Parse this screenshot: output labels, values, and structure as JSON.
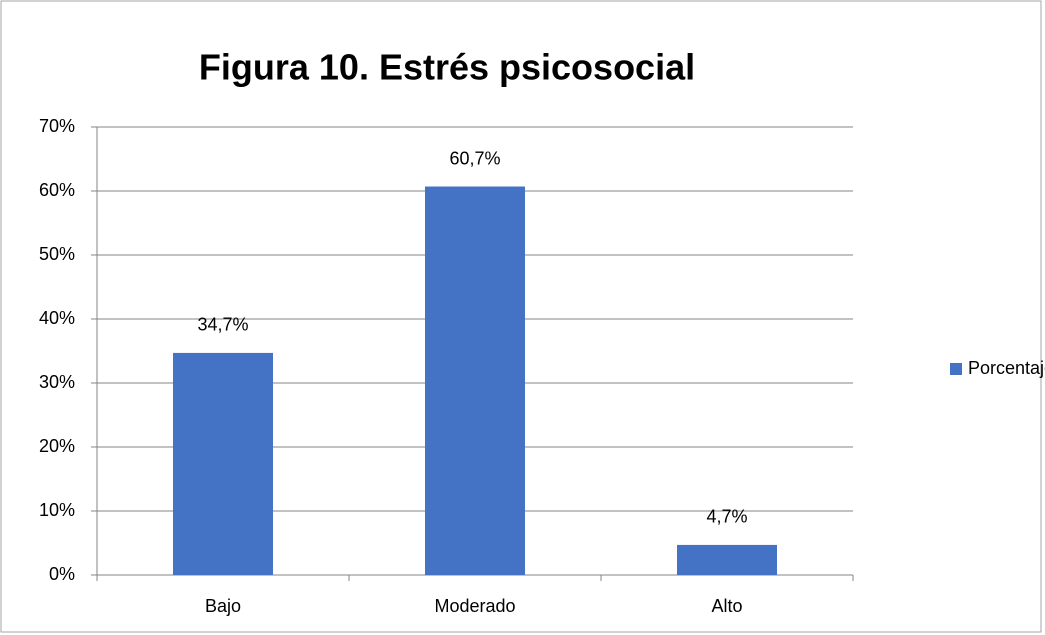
{
  "chart_data": {
    "type": "bar",
    "title": "Figura 10. Estrés psicosocial",
    "categories": [
      "Bajo",
      "Moderado",
      "Alto"
    ],
    "series": [
      {
        "name": "Porcentaje",
        "color": "#4472c4",
        "values": [
          34.7,
          60.7,
          4.7
        ],
        "value_labels": [
          "34,7%",
          "60,7%",
          "4,7%"
        ]
      }
    ],
    "ylim": [
      0,
      70
    ],
    "yticks": [
      {
        "value": 0,
        "label": "0%"
      },
      {
        "value": 10,
        "label": "10%"
      },
      {
        "value": 20,
        "label": "20%"
      },
      {
        "value": 30,
        "label": "30%"
      },
      {
        "value": 40,
        "label": "40%"
      },
      {
        "value": 50,
        "label": "50%"
      },
      {
        "value": 60,
        "label": "60%"
      },
      {
        "value": 70,
        "label": "70%"
      }
    ],
    "grid": true,
    "legend": "right"
  }
}
